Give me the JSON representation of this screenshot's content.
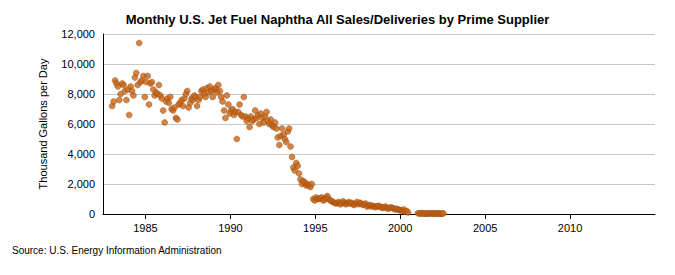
{
  "chart_data": {
    "type": "scatter",
    "title": "Monthly U.S. Jet Fuel Naphtha All Sales/Deliveries by Prime Supplier",
    "y_label": "Thousand Gallons per Day",
    "source": "Source: U.S. Energy Information Administration",
    "color": "#c86414",
    "marker": "circle",
    "grid": true,
    "xlim": [
      1982.5,
      2015
    ],
    "xticks": [
      1985,
      1990,
      1995,
      2000,
      2005,
      2010
    ],
    "ylim": [
      0,
      12000
    ],
    "yticks": [
      0,
      {
        "value": 2000,
        "label": "2,000"
      },
      {
        "value": 4000,
        "label": "4,000"
      },
      {
        "value": 6000,
        "label": "6,000"
      },
      {
        "value": 8000,
        "label": "8,000"
      },
      {
        "value": 10000,
        "label": "10,000"
      },
      {
        "value": 12000,
        "label": "12,000"
      }
    ],
    "x": [
      1983.04,
      1983.13,
      1983.21,
      1983.29,
      1983.38,
      1983.46,
      1983.54,
      1983.63,
      1983.71,
      1983.79,
      1983.88,
      1983.96,
      1984.04,
      1984.13,
      1984.21,
      1984.29,
      1984.38,
      1984.46,
      1984.54,
      1984.63,
      1984.71,
      1984.79,
      1984.88,
      1984.96,
      1985.04,
      1985.13,
      1985.21,
      1985.29,
      1985.38,
      1985.46,
      1985.54,
      1985.63,
      1985.71,
      1985.79,
      1985.88,
      1985.96,
      1986.04,
      1986.13,
      1986.21,
      1986.29,
      1986.38,
      1986.46,
      1986.54,
      1986.63,
      1986.71,
      1986.79,
      1986.88,
      1986.96,
      1987.04,
      1987.13,
      1987.21,
      1987.29,
      1987.38,
      1987.46,
      1987.54,
      1987.63,
      1987.71,
      1987.79,
      1987.88,
      1987.96,
      1988.04,
      1988.13,
      1988.21,
      1988.29,
      1988.38,
      1988.46,
      1988.54,
      1988.63,
      1988.71,
      1988.79,
      1988.88,
      1988.96,
      1989.04,
      1989.13,
      1989.21,
      1989.29,
      1989.38,
      1989.46,
      1989.54,
      1989.63,
      1989.71,
      1989.79,
      1989.88,
      1989.96,
      1990.04,
      1990.13,
      1990.21,
      1990.29,
      1990.38,
      1990.46,
      1990.54,
      1990.63,
      1990.71,
      1990.79,
      1990.88,
      1990.96,
      1991.04,
      1991.13,
      1991.21,
      1991.29,
      1991.38,
      1991.46,
      1991.54,
      1991.63,
      1991.71,
      1991.79,
      1991.88,
      1991.96,
      1992.04,
      1992.13,
      1992.21,
      1992.29,
      1992.38,
      1992.46,
      1992.54,
      1992.63,
      1992.71,
      1992.79,
      1992.88,
      1992.96,
      1993.04,
      1993.13,
      1993.21,
      1993.29,
      1993.38,
      1993.46,
      1993.54,
      1993.63,
      1993.71,
      1993.79,
      1993.88,
      1993.96,
      1994.04,
      1994.13,
      1994.21,
      1994.29,
      1994.38,
      1994.46,
      1994.54,
      1994.63,
      1994.71,
      1994.79,
      1994.88,
      1994.96,
      1995.04,
      1995.13,
      1995.21,
      1995.29,
      1995.38,
      1995.46,
      1995.54,
      1995.63,
      1995.71,
      1995.79,
      1995.88,
      1995.96,
      1996.04,
      1996.13,
      1996.21,
      1996.29,
      1996.38,
      1996.46,
      1996.54,
      1996.63,
      1996.71,
      1996.79,
      1996.88,
      1996.96,
      1997.04,
      1997.13,
      1997.21,
      1997.29,
      1997.38,
      1997.46,
      1997.54,
      1997.63,
      1997.71,
      1997.79,
      1997.88,
      1997.96,
      1998.04,
      1998.13,
      1998.21,
      1998.29,
      1998.38,
      1998.46,
      1998.54,
      1998.63,
      1998.71,
      1998.79,
      1998.88,
      1998.96,
      1999.04,
      1999.13,
      1999.21,
      1999.29,
      1999.38,
      1999.46,
      1999.54,
      1999.63,
      1999.71,
      1999.79,
      1999.88,
      1999.96,
      2000.04,
      2000.13,
      2000.21,
      2000.29,
      2000.38,
      2000.46,
      2001.04,
      2001.13,
      2001.21,
      2001.29,
      2001.38,
      2001.46,
      2001.54,
      2001.63,
      2001.71,
      2001.79,
      2001.88,
      2001.96,
      2002.04,
      2002.13,
      2002.21,
      2002.29,
      2002.38,
      2002.46,
      2002.54
    ],
    "values": [
      7200,
      7500,
      8900,
      8700,
      8500,
      7600,
      8000,
      8700,
      8600,
      8200,
      7600,
      8300,
      6600,
      8500,
      8200,
      7900,
      9100,
      9400,
      8600,
      11400,
      8800,
      8900,
      9200,
      7800,
      8800,
      9200,
      7300,
      8700,
      8800,
      8300,
      7900,
      8100,
      8000,
      8600,
      7900,
      7700,
      6900,
      6100,
      7500,
      7700,
      7400,
      7800,
      7000,
      6900,
      7100,
      6400,
      6300,
      7300,
      7400,
      7600,
      7200,
      7700,
      8000,
      8200,
      7100,
      7400,
      7700,
      7600,
      7900,
      7800,
      7200,
      7600,
      7800,
      8200,
      8300,
      8000,
      7800,
      8400,
      8100,
      8500,
      8200,
      7800,
      8300,
      8400,
      8100,
      8600,
      8200,
      7800,
      7500,
      6900,
      6400,
      7900,
      7300,
      6700,
      6900,
      7000,
      6600,
      6800,
      5000,
      6800,
      7300,
      6600,
      6500,
      7800,
      6500,
      6200,
      6400,
      5800,
      6500,
      6200,
      6300,
      6900,
      6400,
      6600,
      6000,
      6700,
      6400,
      6100,
      6500,
      6800,
      6200,
      6000,
      6300,
      5900,
      5800,
      6100,
      5700,
      5100,
      4600,
      5200,
      5700,
      5300,
      5000,
      4800,
      5500,
      5700,
      4500,
      3800,
      3100,
      2900,
      3400,
      3200,
      2700,
      2300,
      2000,
      2200,
      2100,
      1900,
      2000,
      1900,
      1800,
      2000,
      1000,
      900,
      1100,
      1000,
      1000,
      1050,
      1100,
      900,
      950,
      1100,
      1200,
      1000,
      900,
      850,
      800,
      750,
      700,
      750,
      800,
      650,
      700,
      850,
      750,
      650,
      700,
      800,
      700,
      750,
      650,
      600,
      700,
      800,
      650,
      750,
      700,
      600,
      650,
      700,
      500,
      550,
      600,
      500,
      550,
      500,
      450,
      500,
      550,
      500,
      450,
      400,
      450,
      500,
      400,
      350,
      400,
      450,
      400,
      350,
      300,
      350,
      300,
      250,
      250,
      200,
      300,
      150,
      200,
      100,
      50,
      40,
      30,
      60,
      20,
      30,
      40,
      30,
      20,
      50,
      30,
      40,
      30,
      20,
      40,
      30,
      20,
      30,
      40
    ]
  }
}
